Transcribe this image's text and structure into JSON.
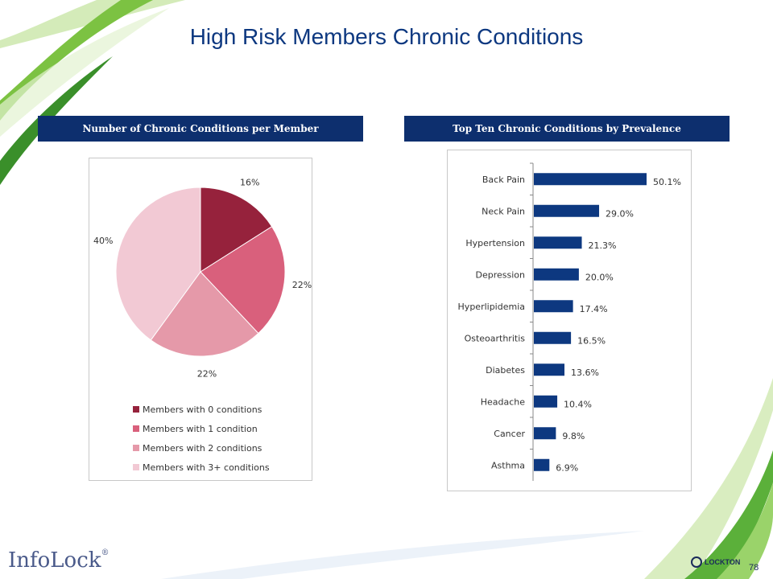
{
  "slide": {
    "title": "High Risk Members Chronic Conditions",
    "page_number": "78",
    "logo_text": "InfoLock",
    "logo_reg": "®",
    "brand_text": "LOCKTON"
  },
  "panels": [
    {
      "header": "Number of Chronic Conditions per Member"
    },
    {
      "header": "Top Ten Chronic Conditions by Prevalence"
    }
  ],
  "chart_data": [
    {
      "type": "pie",
      "title": "Number of Chronic Conditions per Member",
      "categories": [
        "Members with 0 conditions",
        "Members with 1 condition",
        "Members with 2 conditions",
        "Members with 3+ conditions"
      ],
      "values": [
        16,
        22,
        22,
        40
      ],
      "data_labels": [
        "16%",
        "22%",
        "22%",
        "40%"
      ],
      "colors": [
        "#96223c",
        "#d9607c",
        "#e599a9",
        "#f2c9d4"
      ],
      "legend_position": "bottom"
    },
    {
      "type": "bar",
      "orientation": "horizontal",
      "title": "Top Ten Chronic Conditions by Prevalence",
      "categories": [
        "Back Pain",
        "Neck Pain",
        "Hypertension",
        "Depression",
        "Hyperlipidemia",
        "Osteoarthritis",
        "Diabetes",
        "Headache",
        "Cancer",
        "Asthma"
      ],
      "values": [
        50.1,
        29.0,
        21.3,
        20.0,
        17.4,
        16.5,
        13.6,
        10.4,
        9.8,
        6.9
      ],
      "data_labels": [
        "50.1%",
        "29.0%",
        "21.3%",
        "20.0%",
        "17.4%",
        "16.5%",
        "13.6%",
        "10.4%",
        "9.8%",
        "6.9%"
      ],
      "color": "#0d3880",
      "xlim": [
        0,
        50.1
      ]
    }
  ]
}
